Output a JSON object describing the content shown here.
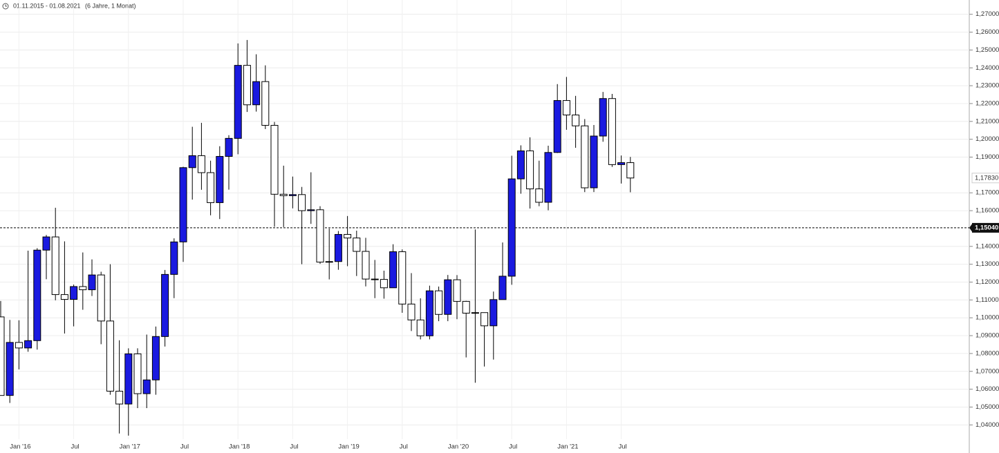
{
  "chart_data": {
    "type": "candlestick",
    "period": "01.11.2015 - 01.08.2021",
    "period_note": "(6 Jahre, 1 Monat)",
    "categories": [
      null,
      null,
      "Jan '16",
      null,
      null,
      null,
      null,
      null,
      "Jul",
      null,
      null,
      null,
      null,
      null,
      "Jan '17",
      null,
      null,
      null,
      null,
      null,
      "Jul",
      null,
      null,
      null,
      null,
      null,
      "Jan '18",
      null,
      null,
      null,
      null,
      null,
      "Jul",
      null,
      null,
      null,
      null,
      null,
      "Jan '19",
      null,
      null,
      null,
      null,
      null,
      "Jul",
      null,
      null,
      null,
      null,
      null,
      "Jan '20",
      null,
      null,
      null,
      null,
      null,
      "Jul",
      null,
      null,
      null,
      null,
      null,
      "Jan '21",
      null,
      null,
      null,
      null,
      null,
      "Jul",
      null
    ],
    "open": [
      1.1005,
      1.0565,
      1.0862,
      1.0831,
      1.0872,
      1.1379,
      1.1453,
      1.113,
      1.1103,
      1.1175,
      1.1157,
      1.124,
      1.0982,
      1.0589,
      1.0517,
      1.0798,
      1.0575,
      1.0652,
      1.0895,
      1.1243,
      1.1425,
      1.1841,
      1.1908,
      1.1813,
      1.1645,
      1.1904,
      1.2005,
      1.2414,
      1.2193,
      1.2323,
      1.2078,
      1.1692,
      1.1684,
      1.169,
      1.16,
      1.1605,
      1.1312,
      1.1315,
      1.1467,
      1.1447,
      1.1372,
      1.1217,
      1.1215,
      1.1168,
      1.137,
      1.1077,
      1.0988,
      1.0899,
      1.1151,
      1.1019,
      1.1213,
      1.1092,
      1.1026,
      1.1029,
      1.0955,
      1.1102,
      1.1233,
      1.1778,
      1.1935,
      1.1722,
      1.1647,
      1.1926,
      1.2217,
      1.2136,
      1.2075,
      1.1728,
      1.2018,
      1.2228,
      1.1858,
      1.1869
    ],
    "high": [
      1.1094,
      1.0988,
      1.0986,
      1.1376,
      1.139,
      1.1464,
      1.1616,
      1.1428,
      1.1186,
      1.1366,
      1.1327,
      1.1258,
      1.13,
      1.0874,
      1.0829,
      1.0829,
      1.0906,
      1.0951,
      1.1268,
      1.1445,
      1.1846,
      1.207,
      1.2092,
      1.188,
      1.1961,
      1.2023,
      1.2537,
      1.2556,
      1.2476,
      1.2414,
      1.2097,
      1.1852,
      1.1791,
      1.1733,
      1.1815,
      1.1625,
      1.15,
      1.1486,
      1.157,
      1.1488,
      1.1448,
      1.1324,
      1.1264,
      1.1412,
      1.1383,
      1.125,
      1.1109,
      1.118,
      1.1175,
      1.124,
      1.1239,
      1.1095,
      1.1495,
      1.1019,
      1.1147,
      1.1422,
      1.1908,
      1.1966,
      1.2011,
      1.188,
      1.1964,
      1.2309,
      1.2349,
      1.2243,
      1.2113,
      1.208,
      1.2265,
      1.2254,
      1.1909,
      1.1901
    ],
    "low": [
      1.0565,
      1.0523,
      1.0711,
      1.081,
      1.0822,
      1.1216,
      1.1098,
      1.0912,
      1.0952,
      1.1045,
      1.1122,
      1.0852,
      1.0569,
      1.0352,
      1.034,
      1.0494,
      1.0494,
      1.0569,
      1.0839,
      1.111,
      1.1313,
      1.1662,
      1.1717,
      1.1574,
      1.1553,
      1.1718,
      1.1916,
      1.2153,
      1.2155,
      1.2057,
      1.151,
      1.1508,
      1.1613,
      1.13,
      1.1526,
      1.1302,
      1.1215,
      1.1269,
      1.1289,
      1.1234,
      1.1176,
      1.111,
      1.1107,
      1.1181,
      1.1028,
      1.0926,
      1.0879,
      1.0879,
      1.0981,
      1.0981,
      1.0992,
      1.0778,
      1.0636,
      1.0727,
      1.0766,
      1.112,
      1.1185,
      1.1695,
      1.1612,
      1.1625,
      1.1602,
      1.1923,
      1.2053,
      1.1952,
      1.1704,
      1.1704,
      1.1986,
      1.1845,
      1.1752,
      1.1703
    ],
    "close": [
      1.0565,
      1.0862,
      1.0831,
      1.0872,
      1.1379,
      1.1453,
      1.113,
      1.1103,
      1.1175,
      1.1157,
      1.124,
      1.0982,
      1.0589,
      1.0517,
      1.0798,
      1.0575,
      1.0652,
      1.0895,
      1.1243,
      1.1425,
      1.1841,
      1.1908,
      1.1813,
      1.1645,
      1.1904,
      1.2005,
      1.2414,
      1.2193,
      1.2323,
      1.2078,
      1.1692,
      1.1684,
      1.169,
      1.16,
      1.1605,
      1.1312,
      1.1315,
      1.1467,
      1.1447,
      1.1372,
      1.1217,
      1.1215,
      1.1168,
      1.137,
      1.1077,
      1.0988,
      1.0899,
      1.1151,
      1.1019,
      1.1213,
      1.1092,
      1.1026,
      1.1029,
      1.0955,
      1.1102,
      1.1233,
      1.1778,
      1.1935,
      1.1722,
      1.1647,
      1.1926,
      1.2217,
      1.2136,
      1.2075,
      1.1728,
      1.2018,
      1.2228,
      1.1858,
      1.1869,
      1.1783
    ],
    "up_color": "#1a1ae0",
    "down_color": "#ffffff",
    "ylim": [
      1.032,
      1.278
    ],
    "yticks": [
      {
        "value": 1.27,
        "label": "1,27000"
      },
      {
        "value": 1.26,
        "label": "1,26000"
      },
      {
        "value": 1.25,
        "label": "1,25000"
      },
      {
        "value": 1.24,
        "label": "1,24000"
      },
      {
        "value": 1.23,
        "label": "1,23000"
      },
      {
        "value": 1.22,
        "label": "1,22000"
      },
      {
        "value": 1.21,
        "label": "1,21000"
      },
      {
        "value": 1.2,
        "label": "1,20000"
      },
      {
        "value": 1.19,
        "label": "1,19000"
      },
      {
        "value": 1.17,
        "label": "1,17000"
      },
      {
        "value": 1.16,
        "label": "1,16000"
      },
      {
        "value": 1.14,
        "label": "1,14000"
      },
      {
        "value": 1.13,
        "label": "1,13000"
      },
      {
        "value": 1.12,
        "label": "1,12000"
      },
      {
        "value": 1.11,
        "label": "1,11000"
      },
      {
        "value": 1.1,
        "label": "1,10000"
      },
      {
        "value": 1.09,
        "label": "1,09000"
      },
      {
        "value": 1.08,
        "label": "1,08000"
      },
      {
        "value": 1.07,
        "label": "1,07000"
      },
      {
        "value": 1.06,
        "label": "1,06000"
      },
      {
        "value": 1.05,
        "label": "1,05000"
      },
      {
        "value": 1.04,
        "label": "1,04000"
      }
    ],
    "last_price": {
      "value": 1.1783,
      "label": "1,17830"
    },
    "reference_line": {
      "value": 1.1504,
      "label": "1,15040"
    },
    "grid": true
  }
}
